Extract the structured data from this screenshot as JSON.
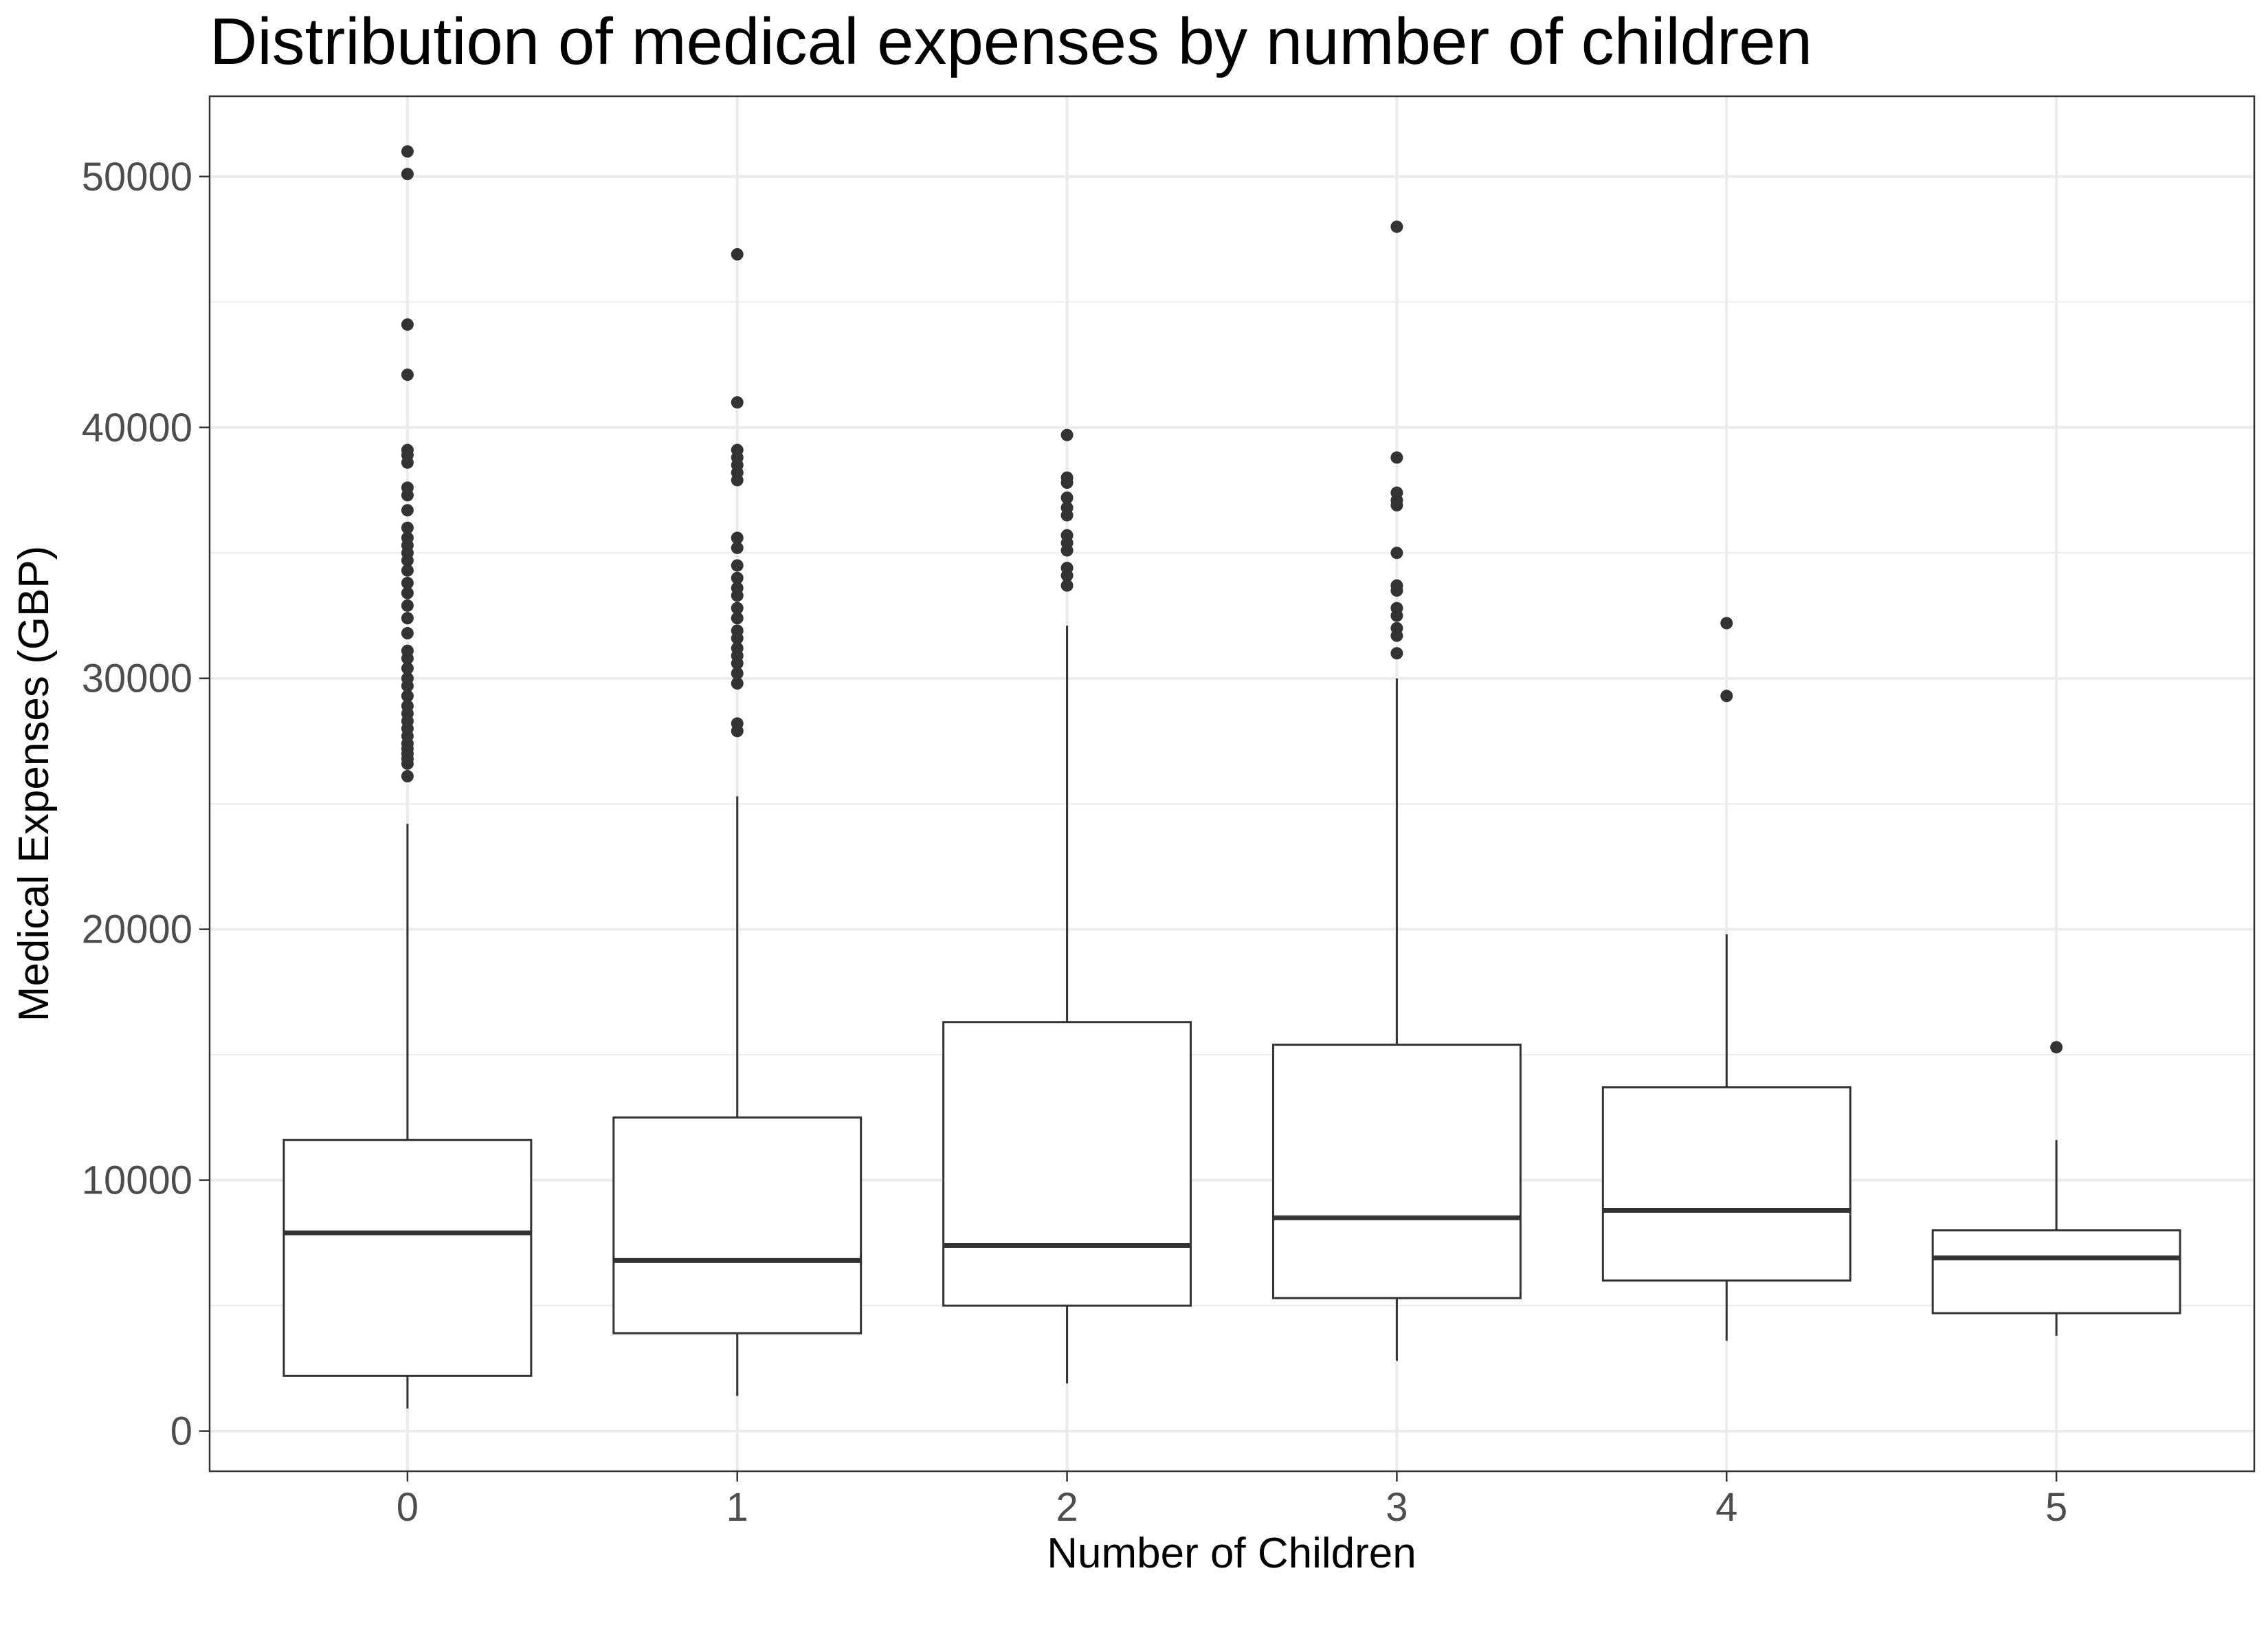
{
  "chart_data": {
    "type": "boxplot",
    "title": "Distribution of medical expenses by number of children",
    "xlabel": "Number of Children",
    "ylabel": "Medical Expenses (GBP)",
    "ylim": [
      -1600,
      53200
    ],
    "yticks": [
      0,
      10000,
      20000,
      30000,
      40000,
      50000
    ],
    "grid": true,
    "categories": [
      "0",
      "1",
      "2",
      "3",
      "4",
      "5"
    ],
    "boxes": [
      {
        "category": "0",
        "whisker_low": 900,
        "q1": 2200,
        "median": 7900,
        "q3": 11600,
        "whisker_high": 24200,
        "outliers": [
          26100,
          26600,
          26800,
          27000,
          27200,
          27400,
          27700,
          28000,
          28300,
          28600,
          28900,
          29300,
          29700,
          30000,
          30400,
          30800,
          31100,
          31800,
          32400,
          32900,
          33400,
          33800,
          34300,
          34700,
          35000,
          35300,
          35600,
          36000,
          36700,
          37300,
          37600,
          38600,
          38900,
          39100,
          42100,
          44100,
          50100,
          51000
        ]
      },
      {
        "category": "1",
        "whisker_low": 1400,
        "q1": 3900,
        "median": 6800,
        "q3": 12500,
        "whisker_high": 25300,
        "outliers": [
          27900,
          28200,
          29800,
          30200,
          30600,
          30900,
          31200,
          31600,
          31900,
          32400,
          32800,
          33300,
          33600,
          34000,
          34500,
          35200,
          35600,
          37900,
          38200,
          38500,
          38800,
          39100,
          41000,
          46900
        ]
      },
      {
        "category": "2",
        "whisker_low": 1900,
        "q1": 5000,
        "median": 7400,
        "q3": 16300,
        "whisker_high": 32100,
        "outliers": [
          33700,
          34100,
          34400,
          35100,
          35400,
          35700,
          36500,
          36800,
          37200,
          37800,
          38000,
          39700
        ]
      },
      {
        "category": "3",
        "whisker_low": 2800,
        "q1": 5300,
        "median": 8500,
        "q3": 15400,
        "whisker_high": 30000,
        "outliers": [
          31000,
          31700,
          32000,
          32500,
          32800,
          33500,
          33700,
          35000,
          36900,
          37100,
          37400,
          38800,
          48000
        ]
      },
      {
        "category": "4",
        "whisker_low": 3600,
        "q1": 6000,
        "median": 8800,
        "q3": 13700,
        "whisker_high": 19800,
        "outliers": [
          29300,
          32200
        ]
      },
      {
        "category": "5",
        "whisker_low": 3800,
        "q1": 4700,
        "median": 6900,
        "q3": 8000,
        "whisker_high": 11600,
        "outliers": [
          15300
        ]
      }
    ]
  }
}
